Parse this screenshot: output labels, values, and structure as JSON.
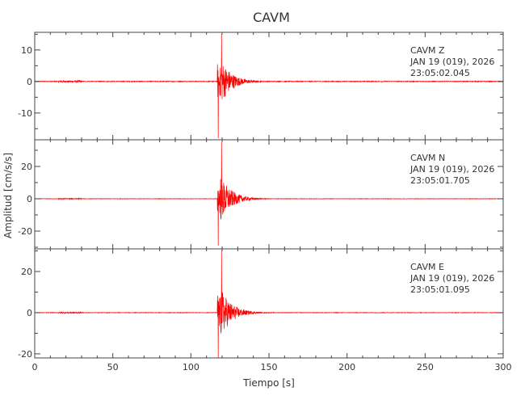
{
  "chart_data": {
    "type": "line",
    "title": "CAVM",
    "xlabel": "Tiempo [s]",
    "ylabel": "Amplitud [cm/s/s]",
    "xlim": [
      0,
      300
    ],
    "xticks": [
      0,
      50,
      100,
      150,
      200,
      250,
      300
    ],
    "grid": false,
    "line_color": "#ff0000",
    "panels": [
      {
        "component": "Z",
        "label_station": "CAVM",
        "label_component": "Z",
        "label_date": "JAN 19 (019), 2026",
        "label_time": "23:05:02.045",
        "ylim": [
          -18.5,
          15.6
        ],
        "yticks": [
          -10,
          0,
          10
        ],
        "onset_s": 117,
        "peak_max": 15,
        "peak_min": -18
      },
      {
        "component": "N",
        "label_station": "CAVM",
        "label_component": "N",
        "label_date": "JAN 19 (019), 2026",
        "label_time": "23:05:01.705",
        "ylim": [
          -31,
          36.5
        ],
        "yticks": [
          -20,
          0,
          20
        ],
        "onset_s": 117,
        "peak_max": 35,
        "peak_min": -29
      },
      {
        "component": "E",
        "label_station": "CAVM",
        "label_component": "E",
        "label_date": "JAN 19 (019), 2026",
        "label_time": "23:05:01.095",
        "ylim": [
          -22,
          31
        ],
        "yticks": [
          -20,
          0,
          20
        ],
        "onset_s": 117,
        "peak_max": 30,
        "peak_min": -22
      }
    ]
  }
}
